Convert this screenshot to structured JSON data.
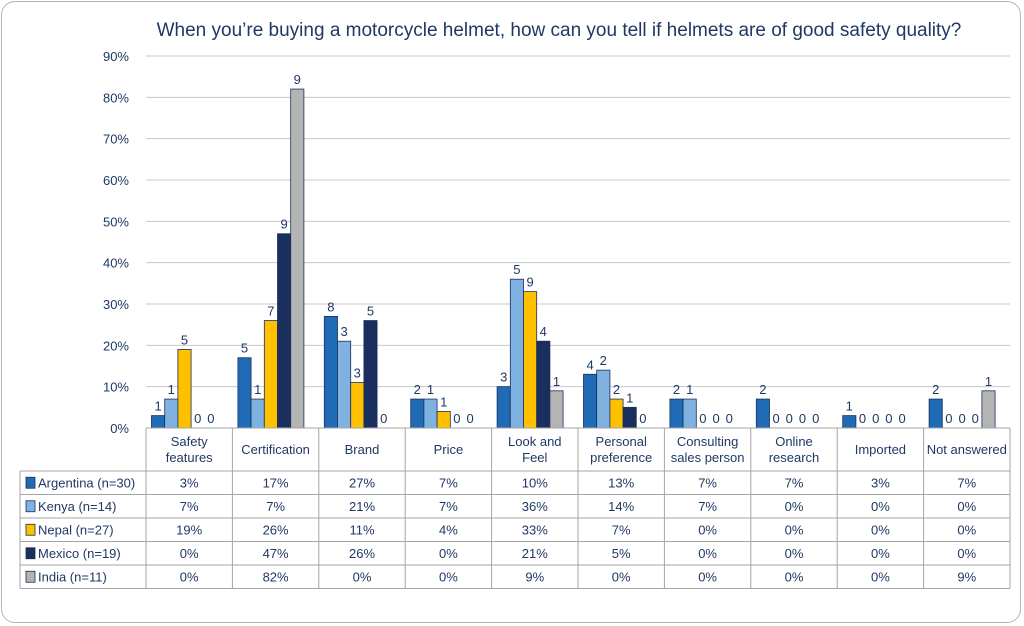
{
  "chart_data": {
    "type": "bar",
    "title": "When you’re buying a motorcycle helmet, how can you tell if helmets are of good safety quality?",
    "ylim": [
      0,
      90
    ],
    "ytick_labels": [
      "0%",
      "10%",
      "20%",
      "30%",
      "40%",
      "50%",
      "60%",
      "70%",
      "80%",
      "90%"
    ],
    "grid": true,
    "legend": "data-table-left",
    "categories": [
      [
        "Safety",
        "features"
      ],
      [
        "Certification"
      ],
      [
        "Brand"
      ],
      [
        "Price"
      ],
      [
        "Look and",
        "Feel"
      ],
      [
        "Personal",
        "preference"
      ],
      [
        "Consulting",
        "sales person"
      ],
      [
        "Online",
        "research"
      ],
      [
        "Imported"
      ],
      [
        "Not answered"
      ]
    ],
    "series": [
      {
        "name": "Argentina (n=30)",
        "color": "#1f6bb5",
        "values": [
          3,
          17,
          27,
          7,
          10,
          13,
          7,
          7,
          3,
          7
        ],
        "cells": [
          "3%",
          "17%",
          "27%",
          "7%",
          "10%",
          "13%",
          "7%",
          "7%",
          "3%",
          "7%"
        ],
        "counts": [
          "1",
          "5",
          "8",
          "2",
          "3",
          "4",
          "2",
          "2",
          "1",
          "2"
        ]
      },
      {
        "name": "Kenya (n=14)",
        "color": "#7fb2e0",
        "values": [
          7,
          7,
          21,
          7,
          36,
          14,
          7,
          0,
          0,
          0
        ],
        "cells": [
          "7%",
          "7%",
          "21%",
          "7%",
          "36%",
          "14%",
          "7%",
          "0%",
          "0%",
          "0%"
        ],
        "counts": [
          "1",
          "1",
          "3",
          "1",
          "5",
          "2",
          "1",
          "0",
          "0",
          "0"
        ]
      },
      {
        "name": "Nepal (n=27)",
        "color": "#ffc000",
        "values": [
          19,
          26,
          11,
          4,
          33,
          7,
          0,
          0,
          0,
          0
        ],
        "cells": [
          "19%",
          "26%",
          "11%",
          "4%",
          "33%",
          "7%",
          "0%",
          "0%",
          "0%",
          "0%"
        ],
        "counts": [
          "5",
          "7",
          "3",
          "1",
          "9",
          "2",
          "0",
          "0",
          "0",
          "0"
        ]
      },
      {
        "name": "Mexico (n=19)",
        "color": "#1b2f5e",
        "values": [
          0,
          47,
          26,
          0,
          21,
          5,
          0,
          0,
          0,
          0
        ],
        "cells": [
          "0%",
          "47%",
          "26%",
          "0%",
          "21%",
          "5%",
          "0%",
          "0%",
          "0%",
          "0%"
        ],
        "counts": [
          "0",
          "9",
          "5",
          "0",
          "4",
          "1",
          "0",
          "0",
          "0",
          "0"
        ]
      },
      {
        "name": "India (n=11)",
        "color": "#b4b4b4",
        "values": [
          0,
          82,
          0,
          0,
          9,
          0,
          0,
          0,
          0,
          9
        ],
        "cells": [
          "0%",
          "82%",
          "0%",
          "0%",
          "9%",
          "0%",
          "0%",
          "0%",
          "0%",
          "9%"
        ],
        "counts": [
          "0",
          "9",
          "0",
          "0",
          "1",
          "0",
          "0",
          "0",
          "0",
          "1"
        ]
      }
    ]
  }
}
